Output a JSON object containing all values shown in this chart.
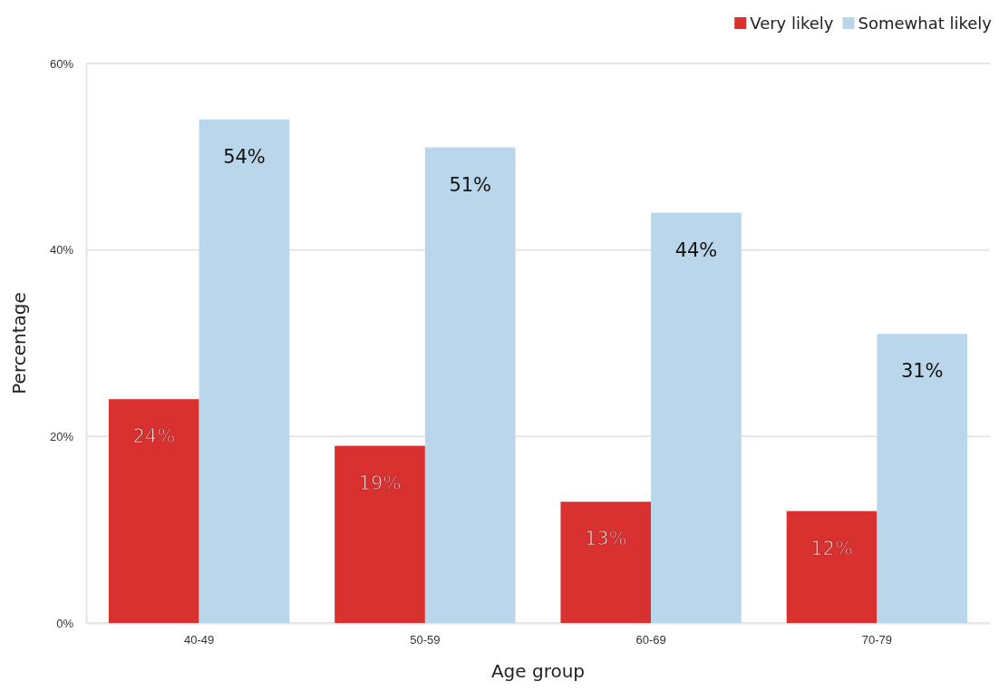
{
  "chart_data": {
    "type": "bar",
    "xlabel": "Age group",
    "ylabel": "Percentage",
    "categories": [
      "40-49",
      "50-59",
      "60-69",
      "70-79"
    ],
    "series": [
      {
        "name": "Very likely",
        "color": "#d93030",
        "values": [
          24,
          19,
          13,
          12
        ],
        "value_labels": [
          "24%",
          "19%",
          "13%",
          "12%"
        ]
      },
      {
        "name": "Somewhat likely",
        "color": "#bad6ea",
        "values": [
          54,
          51,
          44,
          31
        ],
        "value_labels": [
          "54%",
          "51%",
          "44%",
          "31%"
        ]
      }
    ],
    "ylim": [
      0,
      60
    ],
    "yticks": [
      {
        "value": 0,
        "label": "0%"
      },
      {
        "value": 20,
        "label": "20%"
      },
      {
        "value": 40,
        "label": "40%"
      },
      {
        "value": 60,
        "label": "60%"
      }
    ],
    "grid": "y",
    "legend": "top right"
  }
}
